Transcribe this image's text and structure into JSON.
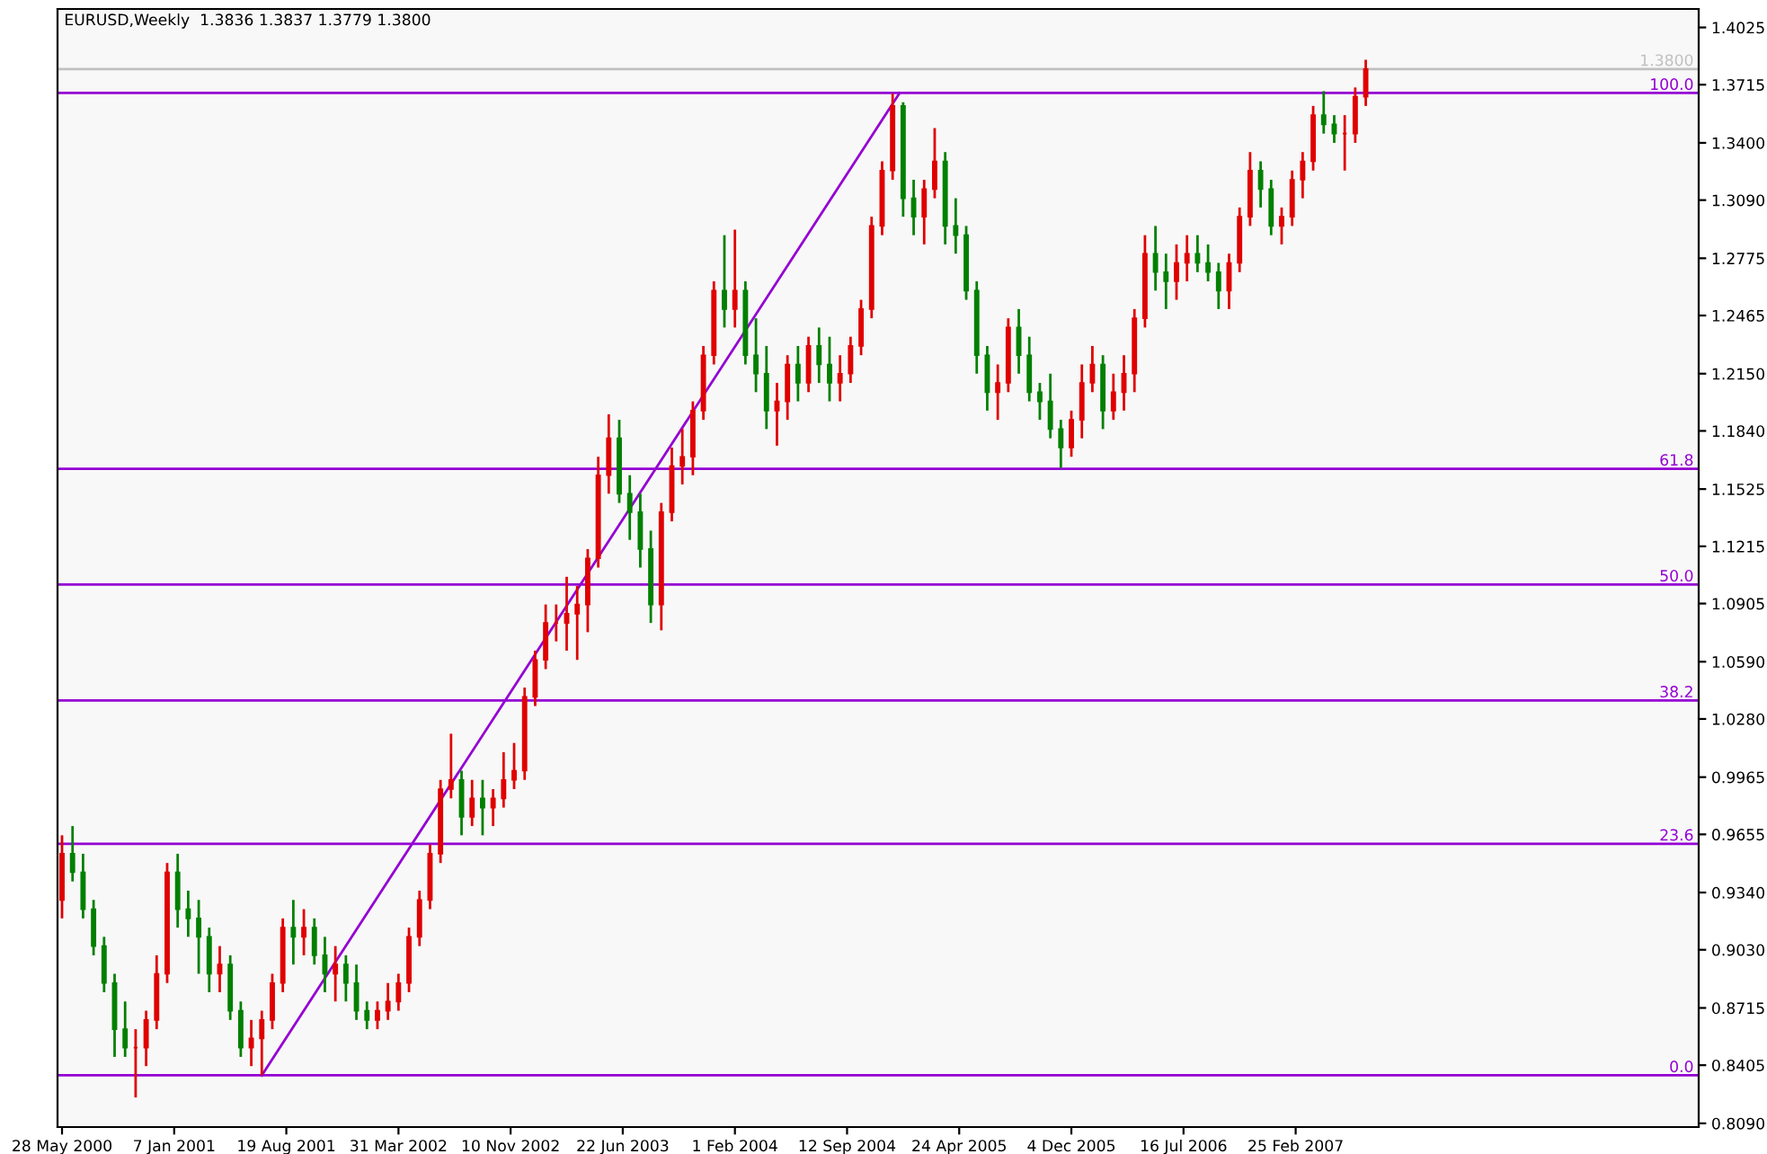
{
  "chart_data": {
    "type": "candlestick",
    "title": "EURUSD,Weekly  1.3836 1.3837 1.3779 1.3800",
    "x": [
      "2000-05-28",
      "2000-06-18",
      "2000-07-09",
      "2000-07-30",
      "2000-08-20",
      "2000-09-10",
      "2000-10-01",
      "2000-10-22",
      "2000-11-12",
      "2000-12-03",
      "2000-12-24",
      "2001-01-14",
      "2001-02-04",
      "2001-02-25",
      "2001-03-18",
      "2001-04-08",
      "2001-04-29",
      "2001-05-20",
      "2001-06-10",
      "2001-07-01",
      "2001-07-22",
      "2001-08-12",
      "2001-09-02",
      "2001-09-23",
      "2001-10-14",
      "2001-11-04",
      "2001-11-25",
      "2001-12-16",
      "2002-01-06",
      "2002-01-27",
      "2002-02-17",
      "2002-03-10",
      "2002-03-31",
      "2002-04-21",
      "2002-05-12",
      "2002-06-02",
      "2002-06-23",
      "2002-07-14",
      "2002-08-04",
      "2002-08-25",
      "2002-09-15",
      "2002-10-06",
      "2002-10-27",
      "2002-11-17",
      "2002-12-08",
      "2002-12-29",
      "2003-01-19",
      "2003-02-09",
      "2003-03-02",
      "2003-03-23",
      "2003-04-13",
      "2003-05-04",
      "2003-05-25",
      "2003-06-15",
      "2003-07-06",
      "2003-07-27",
      "2003-08-17",
      "2003-09-07",
      "2003-09-28",
      "2003-10-19",
      "2003-11-09",
      "2003-11-30",
      "2003-12-21",
      "2004-01-11",
      "2004-02-01",
      "2004-02-22",
      "2004-03-14",
      "2004-04-04",
      "2004-04-25",
      "2004-05-16",
      "2004-06-06",
      "2004-06-27",
      "2004-07-18",
      "2004-08-08",
      "2004-08-29",
      "2004-09-19",
      "2004-10-10",
      "2004-10-31",
      "2004-11-21",
      "2004-12-12",
      "2005-01-02",
      "2005-01-23",
      "2005-02-13",
      "2005-03-06",
      "2005-03-27",
      "2005-04-17",
      "2005-05-08",
      "2005-05-29",
      "2005-06-19",
      "2005-07-10",
      "2005-07-31",
      "2005-08-21",
      "2005-09-11",
      "2005-10-02",
      "2005-10-23",
      "2005-11-13",
      "2005-12-04",
      "2005-12-25",
      "2006-01-15",
      "2006-02-05",
      "2006-02-26",
      "2006-03-19",
      "2006-04-09",
      "2006-04-30",
      "2006-05-21",
      "2006-06-11",
      "2006-07-02",
      "2006-07-23",
      "2006-08-13",
      "2006-09-03",
      "2006-09-24",
      "2006-10-15",
      "2006-11-05",
      "2006-11-26",
      "2006-12-17",
      "2007-01-07",
      "2007-01-28",
      "2007-02-18",
      "2007-03-11",
      "2007-04-01",
      "2007-04-22",
      "2007-05-13",
      "2007-06-03",
      "2007-06-24",
      "2007-07-15"
    ],
    "ohlc": [
      [
        0.93,
        0.965,
        0.92,
        0.955
      ],
      [
        0.955,
        0.97,
        0.94,
        0.945
      ],
      [
        0.945,
        0.955,
        0.92,
        0.925
      ],
      [
        0.925,
        0.93,
        0.9,
        0.905
      ],
      [
        0.905,
        0.91,
        0.88,
        0.885
      ],
      [
        0.885,
        0.89,
        0.845,
        0.86
      ],
      [
        0.86,
        0.875,
        0.845,
        0.85
      ],
      [
        0.85,
        0.86,
        0.823,
        0.85
      ],
      [
        0.85,
        0.87,
        0.84,
        0.865
      ],
      [
        0.865,
        0.9,
        0.86,
        0.89
      ],
      [
        0.89,
        0.95,
        0.885,
        0.945
      ],
      [
        0.945,
        0.955,
        0.915,
        0.925
      ],
      [
        0.925,
        0.935,
        0.91,
        0.92
      ],
      [
        0.92,
        0.93,
        0.89,
        0.91
      ],
      [
        0.91,
        0.915,
        0.88,
        0.89
      ],
      [
        0.89,
        0.905,
        0.88,
        0.895
      ],
      [
        0.895,
        0.9,
        0.865,
        0.87
      ],
      [
        0.87,
        0.875,
        0.845,
        0.85
      ],
      [
        0.85,
        0.865,
        0.84,
        0.855
      ],
      [
        0.855,
        0.87,
        0.835,
        0.865
      ],
      [
        0.865,
        0.89,
        0.86,
        0.885
      ],
      [
        0.885,
        0.92,
        0.88,
        0.915
      ],
      [
        0.915,
        0.93,
        0.895,
        0.91
      ],
      [
        0.91,
        0.925,
        0.9,
        0.915
      ],
      [
        0.915,
        0.92,
        0.895,
        0.9
      ],
      [
        0.9,
        0.91,
        0.88,
        0.89
      ],
      [
        0.89,
        0.905,
        0.875,
        0.895
      ],
      [
        0.895,
        0.9,
        0.875,
        0.885
      ],
      [
        0.885,
        0.895,
        0.865,
        0.87
      ],
      [
        0.87,
        0.875,
        0.86,
        0.865
      ],
      [
        0.865,
        0.875,
        0.86,
        0.87
      ],
      [
        0.87,
        0.885,
        0.865,
        0.875
      ],
      [
        0.875,
        0.89,
        0.87,
        0.885
      ],
      [
        0.885,
        0.915,
        0.88,
        0.91
      ],
      [
        0.91,
        0.935,
        0.905,
        0.93
      ],
      [
        0.93,
        0.96,
        0.925,
        0.955
      ],
      [
        0.955,
        0.995,
        0.95,
        0.99
      ],
      [
        0.99,
        1.02,
        0.985,
        0.995
      ],
      [
        0.995,
        1.0,
        0.965,
        0.975
      ],
      [
        0.975,
        0.995,
        0.97,
        0.985
      ],
      [
        0.985,
        0.995,
        0.965,
        0.98
      ],
      [
        0.98,
        0.99,
        0.97,
        0.985
      ],
      [
        0.985,
        1.01,
        0.98,
        0.995
      ],
      [
        0.995,
        1.015,
        0.99,
        1.0
      ],
      [
        1.0,
        1.045,
        0.995,
        1.04
      ],
      [
        1.04,
        1.065,
        1.035,
        1.06
      ],
      [
        1.06,
        1.09,
        1.055,
        1.08
      ],
      [
        1.08,
        1.09,
        1.07,
        1.08
      ],
      [
        1.08,
        1.105,
        1.065,
        1.085
      ],
      [
        1.085,
        1.1,
        1.06,
        1.09
      ],
      [
        1.09,
        1.12,
        1.075,
        1.115
      ],
      [
        1.115,
        1.17,
        1.11,
        1.16
      ],
      [
        1.16,
        1.193,
        1.15,
        1.18
      ],
      [
        1.18,
        1.19,
        1.145,
        1.15
      ],
      [
        1.15,
        1.16,
        1.125,
        1.14
      ],
      [
        1.14,
        1.15,
        1.11,
        1.12
      ],
      [
        1.12,
        1.13,
        1.08,
        1.09
      ],
      [
        1.09,
        1.145,
        1.076,
        1.14
      ],
      [
        1.14,
        1.175,
        1.135,
        1.165
      ],
      [
        1.165,
        1.185,
        1.155,
        1.17
      ],
      [
        1.17,
        1.2,
        1.16,
        1.195
      ],
      [
        1.195,
        1.23,
        1.19,
        1.225
      ],
      [
        1.225,
        1.265,
        1.22,
        1.26
      ],
      [
        1.26,
        1.29,
        1.24,
        1.25
      ],
      [
        1.25,
        1.293,
        1.24,
        1.26
      ],
      [
        1.26,
        1.265,
        1.22,
        1.225
      ],
      [
        1.225,
        1.245,
        1.205,
        1.215
      ],
      [
        1.215,
        1.23,
        1.185,
        1.195
      ],
      [
        1.195,
        1.21,
        1.176,
        1.2
      ],
      [
        1.2,
        1.225,
        1.19,
        1.22
      ],
      [
        1.22,
        1.23,
        1.2,
        1.21
      ],
      [
        1.21,
        1.235,
        1.205,
        1.23
      ],
      [
        1.23,
        1.24,
        1.21,
        1.22
      ],
      [
        1.22,
        1.235,
        1.2,
        1.21
      ],
      [
        1.21,
        1.225,
        1.2,
        1.215
      ],
      [
        1.215,
        1.235,
        1.21,
        1.23
      ],
      [
        1.23,
        1.255,
        1.225,
        1.25
      ],
      [
        1.25,
        1.3,
        1.245,
        1.295
      ],
      [
        1.295,
        1.33,
        1.29,
        1.325
      ],
      [
        1.325,
        1.3666,
        1.32,
        1.36
      ],
      [
        1.36,
        1.362,
        1.3,
        1.31
      ],
      [
        1.31,
        1.32,
        1.29,
        1.3
      ],
      [
        1.3,
        1.32,
        1.285,
        1.315
      ],
      [
        1.315,
        1.348,
        1.31,
        1.33
      ],
      [
        1.33,
        1.335,
        1.285,
        1.295
      ],
      [
        1.295,
        1.31,
        1.28,
        1.29
      ],
      [
        1.29,
        1.295,
        1.255,
        1.26
      ],
      [
        1.26,
        1.265,
        1.215,
        1.225
      ],
      [
        1.225,
        1.23,
        1.195,
        1.205
      ],
      [
        1.205,
        1.22,
        1.19,
        1.21
      ],
      [
        1.21,
        1.245,
        1.205,
        1.24
      ],
      [
        1.24,
        1.25,
        1.215,
        1.225
      ],
      [
        1.225,
        1.235,
        1.2,
        1.205
      ],
      [
        1.205,
        1.21,
        1.19,
        1.2
      ],
      [
        1.2,
        1.215,
        1.18,
        1.185
      ],
      [
        1.185,
        1.19,
        1.164,
        1.175
      ],
      [
        1.175,
        1.195,
        1.17,
        1.19
      ],
      [
        1.19,
        1.22,
        1.18,
        1.21
      ],
      [
        1.21,
        1.23,
        1.205,
        1.22
      ],
      [
        1.22,
        1.225,
        1.185,
        1.195
      ],
      [
        1.195,
        1.215,
        1.19,
        1.205
      ],
      [
        1.205,
        1.225,
        1.195,
        1.215
      ],
      [
        1.215,
        1.25,
        1.205,
        1.245
      ],
      [
        1.245,
        1.29,
        1.24,
        1.28
      ],
      [
        1.28,
        1.295,
        1.26,
        1.27
      ],
      [
        1.27,
        1.28,
        1.25,
        1.265
      ],
      [
        1.265,
        1.285,
        1.255,
        1.275
      ],
      [
        1.275,
        1.29,
        1.265,
        1.28
      ],
      [
        1.28,
        1.29,
        1.27,
        1.275
      ],
      [
        1.275,
        1.285,
        1.265,
        1.27
      ],
      [
        1.27,
        1.275,
        1.25,
        1.26
      ],
      [
        1.26,
        1.28,
        1.25,
        1.275
      ],
      [
        1.275,
        1.305,
        1.27,
        1.3
      ],
      [
        1.3,
        1.335,
        1.295,
        1.325
      ],
      [
        1.325,
        1.33,
        1.305,
        1.315
      ],
      [
        1.315,
        1.32,
        1.29,
        1.295
      ],
      [
        1.295,
        1.305,
        1.285,
        1.3
      ],
      [
        1.3,
        1.325,
        1.295,
        1.32
      ],
      [
        1.32,
        1.335,
        1.31,
        1.33
      ],
      [
        1.33,
        1.36,
        1.325,
        1.355
      ],
      [
        1.355,
        1.368,
        1.345,
        1.35
      ],
      [
        1.35,
        1.355,
        1.34,
        1.345
      ],
      [
        1.345,
        1.355,
        1.325,
        1.345
      ],
      [
        1.345,
        1.37,
        1.34,
        1.365
      ],
      [
        1.365,
        1.385,
        1.36,
        1.38
      ]
    ],
    "colors": [
      "#e00000",
      "#008000",
      "#008000",
      "#008000",
      "#008000",
      "#008000",
      "#008000",
      "#e00000",
      "#e00000",
      "#e00000",
      "#e00000",
      "#008000",
      "#008000",
      "#008000",
      "#008000",
      "#e00000",
      "#008000",
      "#008000",
      "#e00000",
      "#e00000",
      "#e00000",
      "#e00000",
      "#008000",
      "#e00000",
      "#008000",
      "#008000",
      "#e00000",
      "#008000",
      "#008000",
      "#008000",
      "#e00000",
      "#e00000",
      "#e00000",
      "#e00000",
      "#e00000",
      "#e00000",
      "#e00000",
      "#e00000",
      "#008000",
      "#e00000",
      "#008000",
      "#e00000",
      "#e00000",
      "#e00000",
      "#e00000",
      "#e00000",
      "#e00000",
      "#e00000",
      "#e00000",
      "#e00000",
      "#e00000",
      "#e00000",
      "#e00000",
      "#008000",
      "#008000",
      "#008000",
      "#008000",
      "#e00000",
      "#e00000",
      "#e00000",
      "#e00000",
      "#e00000",
      "#e00000",
      "#008000",
      "#e00000",
      "#008000",
      "#008000",
      "#008000",
      "#e00000",
      "#e00000",
      "#008000",
      "#e00000",
      "#008000",
      "#008000",
      "#e00000",
      "#e00000",
      "#e00000",
      "#e00000",
      "#e00000",
      "#e00000",
      "#008000",
      "#008000",
      "#e00000",
      "#e00000",
      "#008000",
      "#008000",
      "#008000",
      "#008000",
      "#008000",
      "#e00000",
      "#e00000",
      "#008000",
      "#008000",
      "#008000",
      "#008000",
      "#008000",
      "#e00000",
      "#e00000",
      "#e00000",
      "#008000",
      "#e00000",
      "#e00000",
      "#e00000",
      "#e00000",
      "#008000",
      "#008000",
      "#e00000",
      "#e00000",
      "#008000",
      "#008000",
      "#008000",
      "#e00000",
      "#e00000",
      "#e00000",
      "#008000",
      "#008000",
      "#e00000",
      "#e00000",
      "#e00000",
      "#e00000",
      "#008000",
      "#008000",
      "#e00000",
      "#e00000",
      "#e00000"
    ],
    "series": [
      {
        "type": "line",
        "x": [
          "2001-07-01",
          "2004-12-26"
        ],
        "values": [
          0.835,
          1.367
        ],
        "color": "#9400d3"
      }
    ],
    "ref_lines": [
      {
        "axis": "y",
        "value": 1.38,
        "label": "1.3800",
        "color": "#c0c0c0"
      },
      {
        "axis": "y",
        "value": 1.367,
        "color": "#9400d3"
      },
      {
        "axis": "y",
        "value": 1.1635,
        "color": "#9400d3"
      },
      {
        "axis": "y",
        "value": 1.1008,
        "color": "#9400d3"
      },
      {
        "axis": "y",
        "value": 1.038,
        "color": "#9400d3"
      },
      {
        "axis": "y",
        "value": 0.9604,
        "color": "#9400d3"
      },
      {
        "axis": "y",
        "value": 0.835,
        "color": "#9400d3"
      }
    ],
    "annotations": [
      {
        "text": "100.0",
        "y": 1.367
      },
      {
        "text": "61.8",
        "y": 1.1635
      },
      {
        "text": "50.0",
        "y": 1.1008
      },
      {
        "text": "38.2",
        "y": 1.038
      },
      {
        "text": "23.6",
        "y": 0.9604
      },
      {
        "text": "0.0",
        "y": 0.835
      }
    ],
    "xlim": [
      "2000-05-19",
      "2009-05-10"
    ],
    "xticks": [
      {
        "value": "2000-05-28",
        "label": "28 May 2000"
      },
      {
        "value": "2001-01-07",
        "label": "7 Jan 2001"
      },
      {
        "value": "2001-08-19",
        "label": "19 Aug 2001"
      },
      {
        "value": "2002-03-31",
        "label": "31 Mar 2002"
      },
      {
        "value": "2002-11-10",
        "label": "10 Nov 2002"
      },
      {
        "value": "2003-06-22",
        "label": "22 Jun 2003"
      },
      {
        "value": "2004-02-01",
        "label": "1 Feb 2004"
      },
      {
        "value": "2004-09-12",
        "label": "12 Sep 2004"
      },
      {
        "value": "2005-04-24",
        "label": "24 Apr 2005"
      },
      {
        "value": "2005-12-04",
        "label": "4 Dec 2005"
      },
      {
        "value": "2006-07-16",
        "label": "16 Jul 2006"
      },
      {
        "value": "2007-02-25",
        "label": "25 Feb 2007"
      }
    ],
    "ylim": [
      0.807,
      1.4125
    ],
    "yticks": [
      1.4025,
      1.3715,
      {
        "value": 1.34,
        "label": "1.3400"
      },
      {
        "value": 1.309,
        "label": "1.3090"
      },
      1.2775,
      1.2465,
      {
        "value": 1.215,
        "label": "1.2150"
      },
      {
        "value": 1.184,
        "label": "1.1840"
      },
      1.1525,
      1.1215,
      1.0905,
      {
        "value": 1.059,
        "label": "1.0590"
      },
      {
        "value": 1.028,
        "label": "1.0280"
      },
      0.9965,
      0.9655,
      {
        "value": 0.934,
        "label": "0.9340"
      },
      {
        "value": 0.903,
        "label": "0.9030"
      },
      0.8715,
      0.8405,
      {
        "value": 0.809,
        "label": "0.8090"
      }
    ]
  }
}
